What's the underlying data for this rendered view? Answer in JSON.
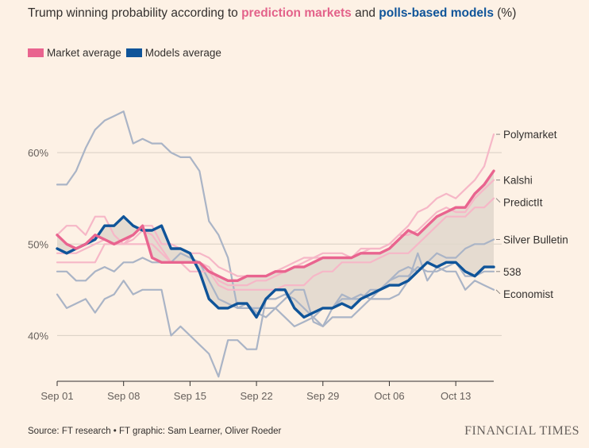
{
  "title": {
    "prefix": "Trump winning probability according to ",
    "markets": "prediction markets",
    "middle": " and ",
    "models": "polls-based models",
    "suffix": " (%)"
  },
  "legend": {
    "market": "Market average",
    "models": "Models average"
  },
  "colors": {
    "background": "#fdf1e5",
    "market_avg": "#e9648f",
    "market_light": "#f6b7c7",
    "models_avg": "#0f5499",
    "models_light": "#aab4c6",
    "band": "#e0d7cc",
    "grid": "#d8cfc4"
  },
  "source": "Source: FT research • FT graphic: Sam Learner, Oliver Roeder",
  "brand": "FINANCIAL TIMES",
  "chart_data": {
    "type": "line",
    "title": "Trump winning probability according to prediction markets and polls-based models (%)",
    "xlabel": "",
    "ylabel": "%",
    "ylim": [
      35,
      68
    ],
    "xlim": [
      0,
      46
    ],
    "x_unit": "days since Sep 01",
    "y_ticks": [
      40,
      50,
      60
    ],
    "y_tick_labels": [
      "40%",
      "50%",
      "60%"
    ],
    "x_ticks": [
      0,
      7,
      14,
      21,
      28,
      35,
      42
    ],
    "x_tick_labels": [
      "Sep 01",
      "Sep 08",
      "Sep 15",
      "Sep 22",
      "Sep 29",
      "Oct 06",
      "Oct 13"
    ],
    "band_note": "Shaded area between market average and models average",
    "series": [
      {
        "name": "Polymarket",
        "role": "market",
        "end_label": "Polymarket",
        "x": [
          0,
          1,
          2,
          3,
          4,
          5,
          6,
          7,
          8,
          9,
          10,
          11,
          12,
          13,
          14,
          15,
          16,
          17,
          18,
          19,
          20,
          21,
          22,
          23,
          24,
          25,
          26,
          27,
          28,
          29,
          30,
          31,
          32,
          33,
          34,
          35,
          36,
          37,
          38,
          39,
          40,
          41,
          42,
          43,
          44,
          45,
          46
        ],
        "values": [
          51,
          52,
          52,
          51,
          53,
          53,
          51,
          50,
          51,
          52,
          52,
          50,
          50,
          49.5,
          49,
          49,
          48.5,
          47.5,
          47,
          46.5,
          46.5,
          46.5,
          46.5,
          47,
          47.5,
          48,
          48.5,
          48.5,
          49,
          49,
          49,
          48.5,
          49.5,
          49.5,
          49.5,
          50,
          51,
          52,
          53.5,
          54,
          55,
          55.5,
          55,
          56,
          57,
          58.5,
          62
        ]
      },
      {
        "name": "Kalshi",
        "role": "market",
        "end_label": "Kalshi",
        "x": [
          0,
          1,
          2,
          3,
          4,
          5,
          6,
          7,
          8,
          9,
          10,
          11,
          12,
          13,
          14,
          15,
          16,
          17,
          18,
          19,
          20,
          21,
          22,
          23,
          24,
          25,
          26,
          27,
          28,
          29,
          30,
          31,
          32,
          33,
          34,
          35,
          36,
          37,
          38,
          39,
          40,
          41,
          42,
          43,
          44,
          45,
          46
        ],
        "values": [
          49,
          49,
          49,
          49.5,
          50,
          50.5,
          50,
          50,
          50.5,
          51.5,
          51,
          49.5,
          48,
          48,
          48,
          48,
          47.5,
          46,
          45.5,
          45.5,
          45.5,
          46,
          46,
          46.5,
          47,
          47.5,
          48,
          48.5,
          48.5,
          48.5,
          48.5,
          48.5,
          49,
          49.5,
          49.5,
          50,
          51,
          51,
          51.5,
          52.5,
          53.5,
          54,
          53.5,
          53.5,
          55,
          56,
          57
        ]
      },
      {
        "name": "PredictIt",
        "role": "market",
        "end_label": "PredictIt",
        "x": [
          0,
          1,
          2,
          3,
          4,
          5,
          6,
          7,
          8,
          9,
          10,
          11,
          12,
          13,
          14,
          15,
          16,
          17,
          18,
          19,
          20,
          21,
          22,
          23,
          24,
          25,
          26,
          27,
          28,
          29,
          30,
          31,
          32,
          33,
          34,
          35,
          36,
          37,
          38,
          39,
          40,
          41,
          42,
          43,
          44,
          45,
          46
        ],
        "values": [
          48,
          48,
          48,
          48,
          48,
          50,
          50,
          50,
          50,
          50,
          50,
          49,
          48,
          48,
          47,
          47,
          47,
          45.5,
          45,
          45,
          45,
          45,
          45,
          45,
          45.5,
          45.5,
          45.5,
          46.5,
          47,
          47,
          48,
          48,
          48,
          48,
          48.5,
          49,
          49,
          49,
          50,
          51,
          52,
          53,
          53,
          53,
          54,
          54,
          55
        ]
      },
      {
        "name": "Silver Bulletin",
        "role": "model",
        "end_label": "Silver Bulletin",
        "x": [
          0,
          1,
          2,
          3,
          4,
          5,
          6,
          7,
          8,
          9,
          10,
          11,
          12,
          13,
          14,
          15,
          16,
          17,
          18,
          19,
          20,
          21,
          22,
          23,
          24,
          25,
          26,
          27,
          28,
          29,
          30,
          31,
          32,
          33,
          34,
          35,
          36,
          37,
          38,
          39,
          40,
          41,
          42,
          43,
          44,
          45,
          46
        ],
        "values": [
          56.5,
          56.5,
          58,
          60.5,
          62.5,
          63.5,
          64,
          64.5,
          61,
          61.5,
          61,
          61,
          60,
          59.5,
          59.5,
          58,
          52.5,
          51,
          48.5,
          43,
          43,
          43,
          43,
          43,
          42,
          41,
          41.5,
          42,
          43,
          43,
          44,
          44,
          44,
          45,
          45,
          46,
          47,
          47.5,
          47,
          48,
          49,
          48.5,
          48.5,
          49.5,
          50,
          50,
          50.5
        ]
      },
      {
        "name": "538",
        "role": "model",
        "end_label": "538",
        "x": [
          0,
          1,
          2,
          3,
          4,
          5,
          6,
          7,
          8,
          9,
          10,
          11,
          12,
          13,
          14,
          15,
          16,
          17,
          18,
          19,
          20,
          21,
          22,
          23,
          24,
          25,
          26,
          27,
          28,
          29,
          30,
          31,
          32,
          33,
          34,
          35,
          36,
          37,
          38,
          39,
          40,
          41,
          42,
          43,
          44,
          45,
          46
        ],
        "values": [
          47,
          47,
          46,
          46,
          47,
          47.5,
          47,
          48,
          48,
          48.5,
          48,
          48,
          48,
          49,
          48.5,
          48,
          46,
          44,
          43.5,
          43,
          43.5,
          42.5,
          42,
          43,
          44,
          45,
          45,
          41.5,
          41,
          42,
          42,
          42,
          43,
          44,
          45,
          46,
          46.5,
          46.5,
          47.5,
          47,
          47,
          47.5,
          48,
          46.5,
          46.5,
          47,
          47
        ]
      },
      {
        "name": "Economist",
        "role": "model",
        "end_label": "Economist",
        "x": [
          0,
          1,
          2,
          3,
          4,
          5,
          6,
          7,
          8,
          9,
          10,
          11,
          12,
          13,
          14,
          15,
          16,
          17,
          18,
          19,
          20,
          21,
          22,
          23,
          24,
          25,
          26,
          27,
          28,
          29,
          30,
          31,
          32,
          33,
          34,
          35,
          36,
          37,
          38,
          39,
          40,
          41,
          42,
          43,
          44,
          45,
          46
        ],
        "values": [
          44.5,
          43,
          43.5,
          44,
          42.5,
          44,
          44.5,
          46,
          44.5,
          45,
          45,
          45,
          40,
          41,
          40,
          39,
          38,
          35.5,
          39.5,
          39.5,
          38.5,
          38.5,
          44,
          44,
          44.5,
          44,
          43,
          42,
          41,
          43,
          44.5,
          44,
          44.5,
          44,
          44,
          44,
          44.5,
          46,
          49,
          46,
          47.5,
          47,
          47,
          45,
          46,
          45.5,
          45
        ]
      },
      {
        "name": "Market average",
        "role": "market-average",
        "x": [
          0,
          1,
          2,
          3,
          4,
          5,
          6,
          7,
          8,
          9,
          10,
          11,
          12,
          13,
          14,
          15,
          16,
          17,
          18,
          19,
          20,
          21,
          22,
          23,
          24,
          25,
          26,
          27,
          28,
          29,
          30,
          31,
          32,
          33,
          34,
          35,
          36,
          37,
          38,
          39,
          40,
          41,
          42,
          43,
          44,
          45,
          46
        ],
        "values": [
          51,
          50,
          49.5,
          50,
          51,
          50.5,
          50,
          50.5,
          51,
          52,
          48.5,
          48,
          48,
          48,
          48,
          48,
          47,
          46.5,
          46,
          46,
          46.5,
          46.5,
          46.5,
          47,
          47,
          47.5,
          47.5,
          48,
          48.5,
          48.5,
          48.5,
          48.5,
          49,
          49,
          49,
          49.5,
          50.5,
          51.5,
          51,
          52,
          53,
          53.5,
          54,
          54,
          55.5,
          56.5,
          58
        ]
      },
      {
        "name": "Models average",
        "role": "models-average",
        "x": [
          0,
          1,
          2,
          3,
          4,
          5,
          6,
          7,
          8,
          9,
          10,
          11,
          12,
          13,
          14,
          15,
          16,
          17,
          18,
          19,
          20,
          21,
          22,
          23,
          24,
          25,
          26,
          27,
          28,
          29,
          30,
          31,
          32,
          33,
          34,
          35,
          36,
          37,
          38,
          39,
          40,
          41,
          42,
          43,
          44,
          45,
          46
        ],
        "values": [
          49.5,
          49,
          49.5,
          50,
          50.5,
          52,
          52,
          53,
          52,
          51.5,
          51.5,
          52,
          49.5,
          49.5,
          49,
          47,
          44,
          43,
          43,
          43.5,
          43.5,
          42,
          44,
          45,
          45,
          43,
          42,
          42.5,
          43,
          43,
          43.5,
          43,
          44,
          44.5,
          45,
          45.5,
          45.5,
          46,
          47,
          48,
          47.5,
          48,
          48,
          47,
          46.5,
          47.5,
          47.5
        ]
      }
    ]
  }
}
